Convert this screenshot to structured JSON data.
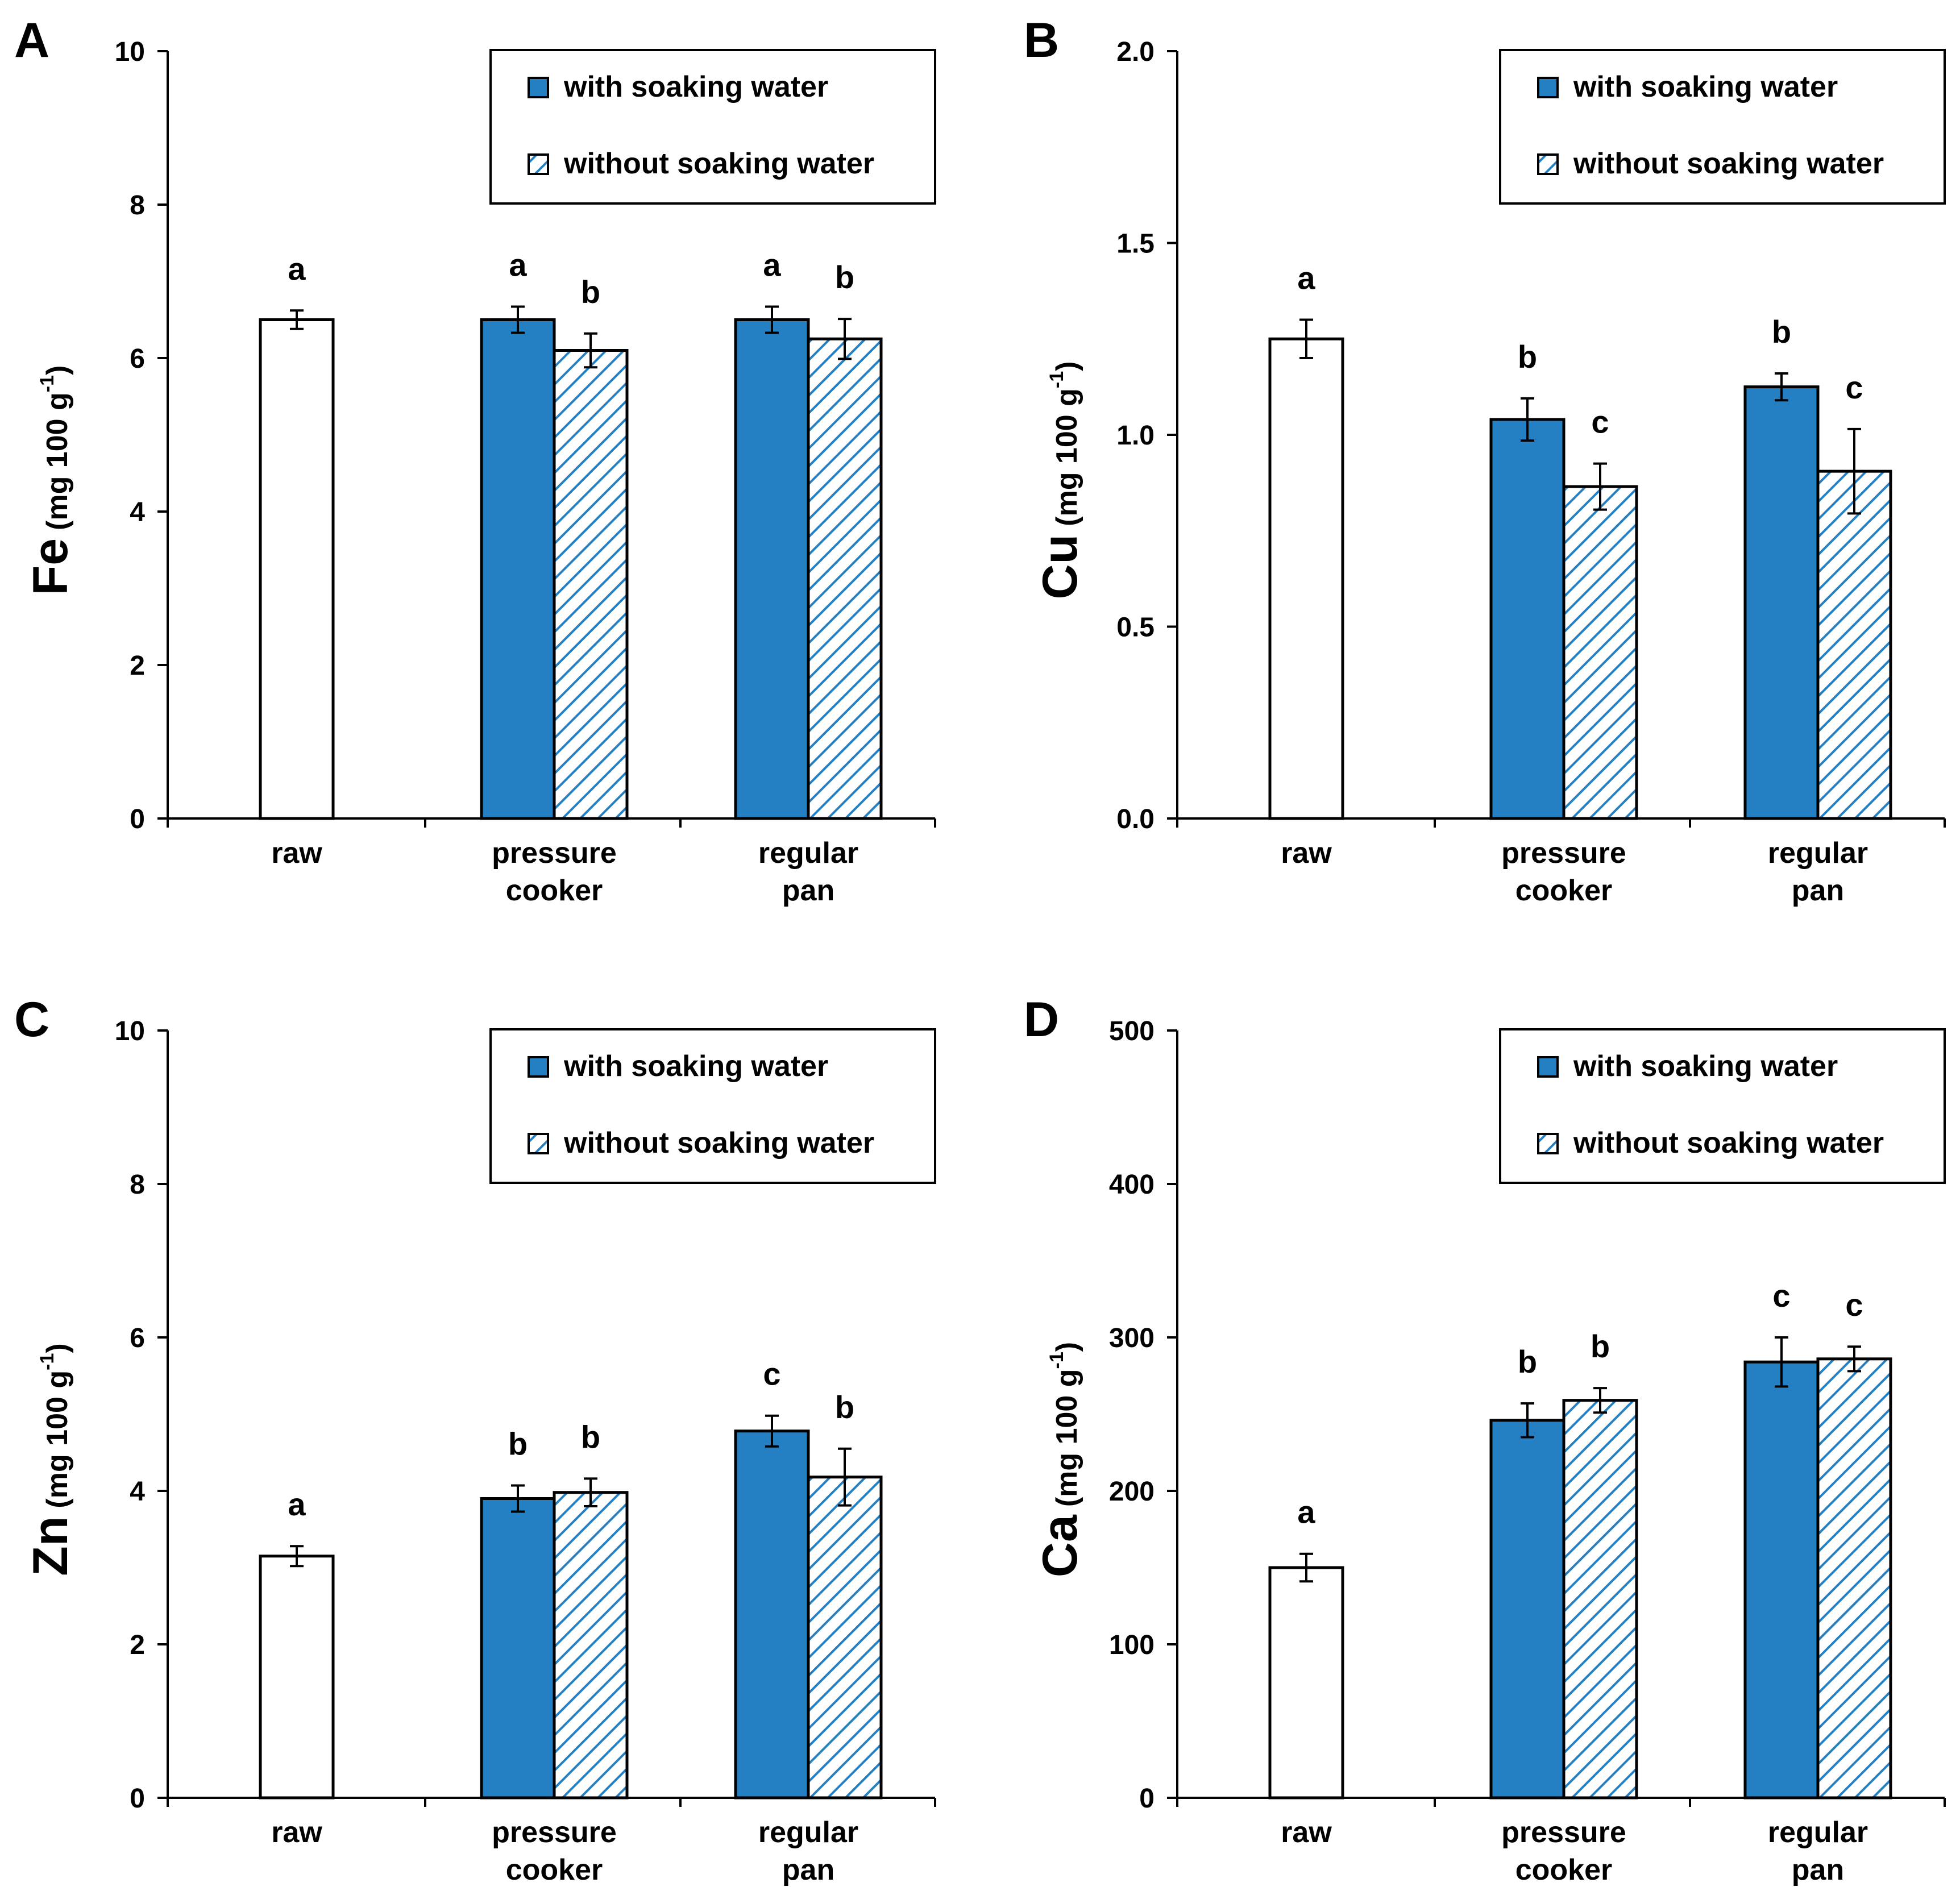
{
  "colors": {
    "filled": "#2480c3",
    "hatch": "#2480c3",
    "raw": "#ffffff",
    "axis": "#000000"
  },
  "legend": {
    "with_label": "with soaking water",
    "without_label": "without soaking water"
  },
  "categories": [
    [
      "raw"
    ],
    [
      "pressure",
      "cooker"
    ],
    [
      "regular",
      "pan"
    ]
  ],
  "chart_data": [
    {
      "panel": "A",
      "type": "bar",
      "element": "Fe",
      "ylabel_unit": "(mg 100 g",
      "ylabel_sup": "-1",
      "ylabel_close": ")",
      "ylim": [
        0,
        10
      ],
      "ticks": [
        "0",
        "2",
        "4",
        "6",
        "8",
        "10"
      ],
      "tick_values": [
        0,
        2,
        4,
        6,
        8,
        10
      ],
      "raw": {
        "value": 6.5,
        "err": 0.12,
        "letter": "a"
      },
      "series": [
        {
          "name": "with soaking water",
          "values": [
            6.5,
            6.5
          ],
          "errors": [
            0.17,
            0.17
          ],
          "letters": [
            "a",
            "a"
          ]
        },
        {
          "name": "without soaking water",
          "values": [
            6.1,
            6.25
          ],
          "errors": [
            0.22,
            0.26
          ],
          "letters": [
            "b",
            "b"
          ]
        }
      ]
    },
    {
      "panel": "B",
      "type": "bar",
      "element": "Cu",
      "ylabel_unit": "(mg 100 g",
      "ylabel_sup": "-1",
      "ylabel_close": ")",
      "ylim": [
        0,
        2
      ],
      "ticks": [
        "0.0",
        "0.5",
        "1.0",
        "1.5",
        "2.0"
      ],
      "tick_values": [
        0,
        0.5,
        1,
        1.5,
        2
      ],
      "raw": {
        "value": 1.25,
        "err": 0.05,
        "letter": "a"
      },
      "series": [
        {
          "name": "with soaking water",
          "values": [
            1.04,
            1.125
          ],
          "errors": [
            0.055,
            0.035
          ],
          "letters": [
            "b",
            "b"
          ]
        },
        {
          "name": "without soaking water",
          "values": [
            0.865,
            0.905
          ],
          "errors": [
            0.06,
            0.11
          ],
          "letters": [
            "c",
            "c"
          ]
        }
      ]
    },
    {
      "panel": "C",
      "type": "bar",
      "element": "Zn",
      "ylabel_unit": "(mg 100 g",
      "ylabel_sup": "-1",
      "ylabel_close": ")",
      "ylim": [
        0,
        10
      ],
      "ticks": [
        "0",
        "2",
        "4",
        "6",
        "8",
        "10"
      ],
      "tick_values": [
        0,
        2,
        4,
        6,
        8,
        10
      ],
      "raw": {
        "value": 3.15,
        "err": 0.13,
        "letter": "a"
      },
      "series": [
        {
          "name": "with soaking water",
          "values": [
            3.9,
            4.78
          ],
          "errors": [
            0.17,
            0.2
          ],
          "letters": [
            "b",
            "c"
          ]
        },
        {
          "name": "without soaking water",
          "values": [
            3.98,
            4.18
          ],
          "errors": [
            0.18,
            0.37
          ],
          "letters": [
            "b",
            "b"
          ]
        }
      ]
    },
    {
      "panel": "D",
      "type": "bar",
      "element": "Ca",
      "ylabel_unit": "(mg 100 g",
      "ylabel_sup": "-1",
      "ylabel_close": ")",
      "ylim": [
        0,
        500
      ],
      "ticks": [
        "0",
        "100",
        "200",
        "300",
        "400",
        "500"
      ],
      "tick_values": [
        0,
        100,
        200,
        300,
        400,
        500
      ],
      "raw": {
        "value": 150,
        "err": 9,
        "letter": "a"
      },
      "series": [
        {
          "name": "with soaking water",
          "values": [
            246,
            284
          ],
          "errors": [
            11,
            16
          ],
          "letters": [
            "b",
            "c"
          ]
        },
        {
          "name": "without soaking water",
          "values": [
            259,
            286
          ],
          "errors": [
            8,
            8
          ],
          "letters": [
            "b",
            "c"
          ]
        }
      ]
    }
  ]
}
